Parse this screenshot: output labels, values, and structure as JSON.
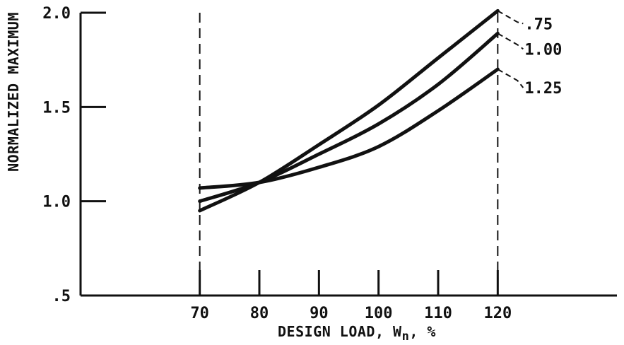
{
  "chart_data": {
    "type": "line",
    "xlabel": "DESIGN LOAD, W",
    "xlabel_sub": "n",
    "xlabel_suffix": ", %",
    "ylabel": "NORMALIZED MAXIMUM",
    "xlim": [
      50,
      140
    ],
    "ylim": [
      0.5,
      2.0
    ],
    "xticks": [
      70,
      80,
      90,
      100,
      110,
      120
    ],
    "xtick_labels": [
      "70",
      "80",
      "90",
      "100",
      "110",
      "120"
    ],
    "yticks": [
      0.5,
      1.0,
      1.5,
      2.0
    ],
    "ytick_labels": [
      ".5",
      "1.0",
      "1.5",
      "2.0"
    ],
    "grid": false,
    "reference_lines_x": [
      70,
      120
    ],
    "series": [
      {
        "name": ".75",
        "x": [
          70,
          80,
          90,
          100,
          110,
          120
        ],
        "y": [
          0.95,
          1.1,
          1.3,
          1.51,
          1.76,
          2.01
        ]
      },
      {
        "name": "1.00",
        "x": [
          70,
          80,
          90,
          100,
          110,
          120
        ],
        "y": [
          1.0,
          1.1,
          1.25,
          1.41,
          1.62,
          1.89
        ]
      },
      {
        "name": "1.25",
        "x": [
          70,
          80,
          90,
          100,
          110,
          120
        ],
        "y": [
          1.07,
          1.1,
          1.18,
          1.29,
          1.48,
          1.7
        ]
      }
    ]
  }
}
